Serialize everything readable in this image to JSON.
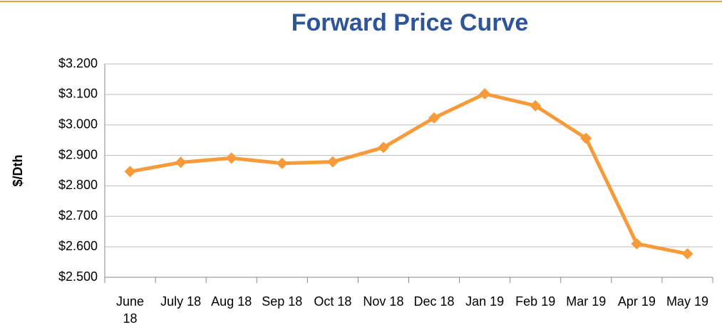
{
  "chart_data": {
    "type": "line",
    "title": "Forward Price Curve",
    "y_label": "$/Dth",
    "categories": [
      "June 18",
      "July 18",
      "Aug 18",
      "Sep 18",
      "Oct 18",
      "Nov 18",
      "Dec 18",
      "Jan 19",
      "Feb 19",
      "Mar 19",
      "Apr 19",
      "May 19"
    ],
    "series": [
      {
        "name": "Forward Price",
        "color": "#f79a3a",
        "values": [
          2.847,
          2.877,
          2.891,
          2.874,
          2.879,
          2.926,
          3.023,
          3.102,
          3.063,
          2.956,
          2.61,
          2.577
        ]
      }
    ],
    "ylim": [
      2.5,
      3.2
    ],
    "yticks": [
      {
        "value": 2.5,
        "label": "$2.500"
      },
      {
        "value": 2.6,
        "label": "$2.600"
      },
      {
        "value": 2.7,
        "label": "$2.700"
      },
      {
        "value": 2.8,
        "label": "$2.800"
      },
      {
        "value": 2.9,
        "label": "$2.900"
      },
      {
        "value": 3.0,
        "label": "$3.000"
      },
      {
        "value": 3.1,
        "label": "$3.100"
      },
      {
        "value": 3.2,
        "label": "$3.200"
      }
    ],
    "grid": true
  }
}
